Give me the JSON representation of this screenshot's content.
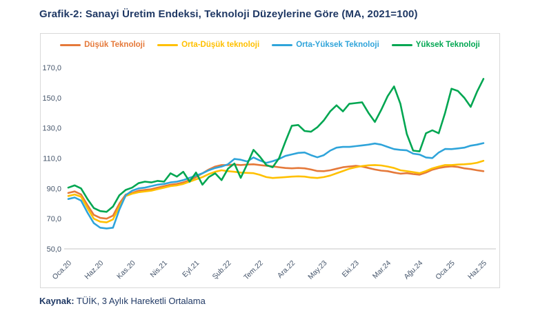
{
  "title": "Grafik-2: Sanayi Üretim Endeksi, Teknoloji Düzeylerine Göre (MA, 2021=100)",
  "source": {
    "label": "Kaynak:",
    "text": " TÜİK, 3 Aylık Hareketli Ortalama"
  },
  "colors": {
    "title_navy": "#1F3864",
    "axis_text": "#44546A",
    "axis_line": "#C6C6C6",
    "card_border": "#D8D8D8"
  },
  "chart_data": {
    "type": "line",
    "title": "Grafik-2: Sanayi Üretim Endeksi, Teknoloji Düzeylerine Göre (MA, 2021=100)",
    "xlabel": "",
    "ylabel": "",
    "ylim": [
      50,
      170
    ],
    "grid": false,
    "legend_position": "top",
    "y_ticks": [
      50,
      70,
      90,
      110,
      130,
      150,
      170
    ],
    "y_tick_labels": [
      "50,0",
      "70,0",
      "90,0",
      "110,0",
      "130,0",
      "150,0",
      "170,0"
    ],
    "x_tick_labels": [
      "Oca.20",
      "Haz.20",
      "Kas.20",
      "Nis.21",
      "Eyl.21",
      "Şub.22",
      "Tem.22",
      "Ara.22",
      "May.23",
      "Eki.23",
      "Mar.24",
      "Ağu.24",
      "Oca.25",
      "Haz.25"
    ],
    "x_tick_month_indices": [
      0,
      5,
      10,
      15,
      20,
      25,
      30,
      35,
      40,
      45,
      50,
      55,
      60,
      65
    ],
    "x_unit": "month (Oca.20 … Haz.25, 66 monthly points)",
    "series": [
      {
        "name": "Düşük Teknoloji",
        "color": "#E5793A",
        "values": [
          87,
          88,
          86,
          79,
          72.5,
          70.5,
          70,
          72,
          80,
          86,
          87,
          88.5,
          89,
          89.5,
          90.5,
          91.5,
          92.5,
          93,
          94,
          95.5,
          97.5,
          100,
          102.5,
          104.5,
          105.5,
          105.5,
          105.8,
          105.5,
          105.8,
          106,
          105.5,
          105,
          104.6,
          104,
          103.5,
          103.3,
          103.5,
          103.3,
          102.5,
          101.5,
          101.4,
          102,
          103,
          104,
          104.5,
          105,
          104.5,
          103.5,
          102.5,
          101.8,
          101.4,
          100.5,
          99.8,
          100.1,
          99.5,
          99.1,
          100.5,
          102.4,
          103.5,
          104.2,
          104.6,
          104.2,
          103.3,
          102.8,
          102,
          101.4
        ]
      },
      {
        "name": "Orta-Düşük teknoloji",
        "color": "#FFC000",
        "values": [
          85,
          86,
          84.5,
          77,
          70,
          68,
          67.5,
          69.5,
          78,
          85,
          86.5,
          87.5,
          88,
          88.5,
          89.5,
          90.5,
          91.5,
          92,
          93,
          94.5,
          96,
          97.5,
          99.5,
          101,
          102,
          101.4,
          101,
          100.5,
          100.3,
          100.1,
          99,
          97.5,
          96.9,
          97.2,
          97.5,
          97.8,
          98,
          97.8,
          97.2,
          96.9,
          97.5,
          98.5,
          100,
          101.5,
          103,
          104,
          104.8,
          105.3,
          105.5,
          105.2,
          104.5,
          103.5,
          102,
          101.4,
          100.8,
          100.1,
          101.5,
          103.3,
          104.5,
          105.5,
          105.5,
          105.8,
          106,
          106.3,
          107,
          108.3
        ]
      },
      {
        "name": "Orta-Yüksek Teknoloji",
        "color": "#2FA4DA",
        "values": [
          83,
          84,
          82,
          74,
          67,
          64,
          63.5,
          64,
          76,
          85.5,
          88.5,
          90,
          90.5,
          91.5,
          92.5,
          93,
          94,
          94.5,
          95.5,
          97,
          98.5,
          100,
          102,
          103.5,
          104.5,
          106,
          109.5,
          109,
          107.8,
          110.5,
          108.5,
          106.9,
          108,
          109.5,
          111.5,
          112.5,
          113.5,
          113.8,
          112,
          110.6,
          112,
          115,
          117,
          117.5,
          117.5,
          118,
          118.5,
          119,
          119.7,
          119,
          117.5,
          116,
          115.5,
          115.2,
          113,
          112.4,
          110.5,
          110.1,
          113.8,
          116.1,
          116,
          116.5,
          117,
          118.3,
          119,
          120
        ]
      },
      {
        "name": "Yüksek Teknoloji",
        "color": "#00A651",
        "values": [
          90.5,
          92,
          90,
          83,
          77,
          75,
          74.5,
          78,
          85.5,
          89,
          90.5,
          93.5,
          94.5,
          94,
          95,
          94.5,
          100,
          97.8,
          101,
          94.5,
          100.5,
          92.5,
          97.5,
          100,
          95.5,
          103,
          106.5,
          97,
          106,
          115.5,
          111,
          105.5,
          104,
          110,
          121,
          131.5,
          132,
          128,
          127.5,
          130.5,
          135,
          141,
          145,
          141,
          146,
          146.5,
          147,
          140,
          134,
          142,
          151,
          157.5,
          146,
          126,
          115,
          114.5,
          126.5,
          128.5,
          126.5,
          140,
          156,
          154.5,
          150,
          144,
          154,
          162.5
        ]
      }
    ]
  }
}
